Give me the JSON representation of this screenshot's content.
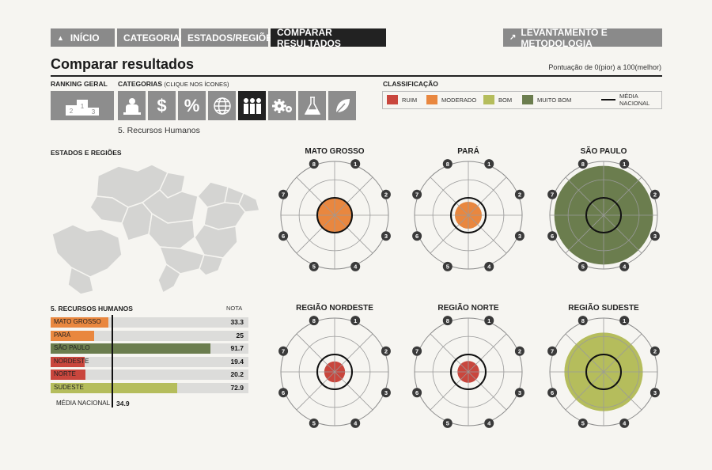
{
  "nav": {
    "home": "INÍCIO",
    "categories": "CATEGORIAS",
    "states": "ESTADOS/REGIÕES",
    "compare": "COMPARAR RESULTADOS",
    "methodology": "LEVANTAMENTO E METODOLOGIA"
  },
  "header": {
    "title": "Comparar resultados",
    "scale_note": "Pontuação de 0(pior) a 100(melhor)"
  },
  "ranking": {
    "label": "RANKING GERAL",
    "podium": [
      "2",
      "1",
      "3"
    ]
  },
  "categories": {
    "label": "CATEGORIAS",
    "hint": "(CLIQUE NOS ÍCONES)",
    "icons": [
      "podium-icon",
      "person-icon",
      "dollar-icon",
      "percent-icon",
      "globe-icon",
      "people-icon",
      "gears-icon",
      "flask-icon",
      "leaf-icon"
    ],
    "dollar_glyph": "$",
    "percent_glyph": "%",
    "selected_index": 4,
    "selected_text": "5. Recursos Humanos"
  },
  "classification": {
    "label": "CLASSIFICAÇÃO",
    "items": [
      {
        "label": "RUIM",
        "color": "#c9463d"
      },
      {
        "label": "MODERADO",
        "color": "#e9873f"
      },
      {
        "label": "BOM",
        "color": "#b5bd5c"
      },
      {
        "label": "MUITO BOM",
        "color": "#6b7d4e"
      }
    ],
    "avg_line_1": "MÉDIA",
    "avg_line_2": "NACIONAL"
  },
  "map": {
    "label": "ESTADOS E REGIÕES",
    "region_color": "#d4d4d2"
  },
  "results": {
    "title": "5. RECURSOS HUMANOS",
    "score_header": "NOTA",
    "national_average_label": "MÉDIA NACIONAL",
    "national_average": 34.9,
    "national_average_text": "34.9",
    "rows": [
      {
        "name": "MATO GROSSO",
        "value": 33.3,
        "value_text": "33.3",
        "color": "#e9873f"
      },
      {
        "name": "PARÁ",
        "value": 25,
        "value_text": "25",
        "color": "#e9873f"
      },
      {
        "name": "SÃO PAULO",
        "value": 91.7,
        "value_text": "91.7",
        "color": "#6b7d4e"
      },
      {
        "name": "NORDESTE",
        "value": 19.4,
        "value_text": "19.4",
        "color": "#c9463d"
      },
      {
        "name": "NORTE",
        "value": 20.2,
        "value_text": "20.2",
        "color": "#c9463d"
      },
      {
        "name": "SUDESTE",
        "value": 72.9,
        "value_text": "72.9",
        "color": "#b5bd5c"
      }
    ]
  },
  "radars": {
    "spoke_labels": [
      "1",
      "2",
      "3",
      "4",
      "5",
      "6",
      "7",
      "8"
    ],
    "items": [
      {
        "title": "MATO GROSSO",
        "value": 33.3,
        "color": "#e9873f"
      },
      {
        "title": "PARÁ",
        "value": 25,
        "color": "#e9873f"
      },
      {
        "title": "SÃO PAULO",
        "value": 91.7,
        "color": "#6b7d4e"
      },
      {
        "title": "REGIÃO NORDESTE",
        "value": 19.4,
        "color": "#c9463d"
      },
      {
        "title": "REGIÃO NORTE",
        "value": 20.2,
        "color": "#c9463d"
      },
      {
        "title": "REGIÃO SUDESTE",
        "value": 72.9,
        "color": "#b5bd5c"
      }
    ]
  }
}
